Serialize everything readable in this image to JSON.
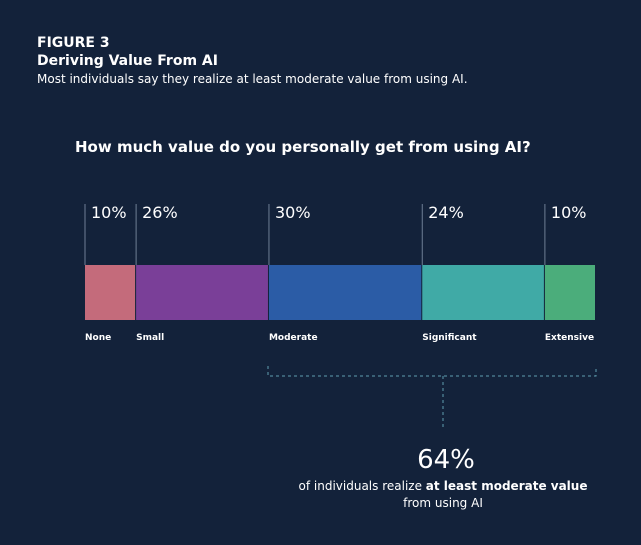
{
  "chart_data": {
    "type": "stacked-bar",
    "figure_label": "FIGURE 3",
    "title": "Deriving Value From AI",
    "subtitle": "Most individuals say they realize at least moderate value from using AI.",
    "question": "How much value do you personally get from using AI?",
    "categories": [
      "None",
      "Small",
      "Moderate",
      "Significant",
      "Extensive"
    ],
    "values": [
      10,
      26,
      30,
      24,
      10
    ],
    "value_labels": [
      "10%",
      "26%",
      "30%",
      "24%",
      "10%"
    ],
    "colors": [
      "#c46b7b",
      "#7a3f98",
      "#2b5ca6",
      "#40aaa6",
      "#4bad7b"
    ],
    "xlim": [
      0,
      100
    ],
    "annotation": {
      "value_label": "64%",
      "text_before": "of individuals realize",
      "text_bold": "at least moderate value",
      "text_after": "from using AI"
    }
  }
}
